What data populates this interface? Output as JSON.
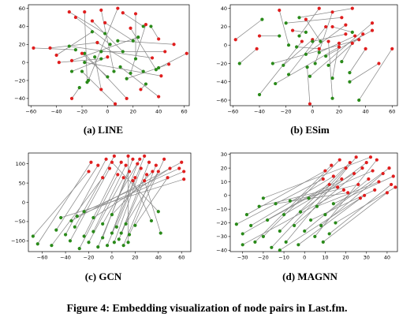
{
  "figure_caption": "Figure 4: Embedding visualization of node pairs in Last.fm.",
  "colors": {
    "red": "#e01e1e",
    "green": "#2a8a1a",
    "line": "#8a8a8a"
  },
  "chart_data": [
    {
      "type": "scatter",
      "caption": "(a) LINE",
      "xlim": [
        -62,
        64
      ],
      "ylim": [
        -48,
        64
      ],
      "xticks": [
        -60,
        -40,
        -20,
        0,
        20,
        40,
        60
      ],
      "yticks": [
        -40,
        -20,
        0,
        20,
        40,
        60
      ],
      "pairs": [
        [
          [
            -58,
            16
          ],
          [
            -25,
            14
          ]
        ],
        [
          [
            -45,
            16
          ],
          [
            -8,
            22
          ]
        ],
        [
          [
            -40,
            8
          ],
          [
            -12,
            34
          ]
        ],
        [
          [
            -38,
            0
          ],
          [
            -5,
            4
          ]
        ],
        [
          [
            -30,
            56
          ],
          [
            -2,
            32
          ]
        ],
        [
          [
            -25,
            50
          ],
          [
            2,
            20
          ]
        ],
        [
          [
            -18,
            56
          ],
          [
            -16,
            -22
          ]
        ],
        [
          [
            -12,
            46
          ],
          [
            12,
            12
          ]
        ],
        [
          [
            -5,
            58
          ],
          [
            5,
            -10
          ]
        ],
        [
          [
            -8,
            22
          ],
          [
            28,
            -10
          ]
        ],
        [
          [
            -2,
            44
          ],
          [
            20,
            24
          ]
        ],
        [
          [
            8,
            60
          ],
          [
            -15,
            -20
          ]
        ],
        [
          [
            12,
            55
          ],
          [
            28,
            40
          ]
        ],
        [
          [
            22,
            54
          ],
          [
            22,
            4
          ]
        ],
        [
          [
            30,
            42
          ],
          [
            18,
            -12
          ]
        ],
        [
          [
            40,
            26
          ],
          [
            34,
            40
          ]
        ],
        [
          [
            45,
            12
          ],
          [
            -5,
            12
          ]
        ],
        [
          [
            52,
            20
          ],
          [
            8,
            24
          ]
        ],
        [
          [
            62,
            10
          ],
          [
            40,
            -6
          ]
        ],
        [
          [
            48,
            -2
          ],
          [
            15,
            -18
          ]
        ],
        [
          [
            42,
            -15
          ],
          [
            -18,
            0
          ]
        ],
        [
          [
            40,
            -38
          ],
          [
            10,
            -5
          ]
        ],
        [
          [
            15,
            -40
          ],
          [
            -18,
            10
          ]
        ],
        [
          [
            6,
            -46
          ],
          [
            -20,
            -10
          ]
        ],
        [
          [
            -5,
            -30
          ],
          [
            -10,
            6
          ]
        ],
        [
          [
            -28,
            -40
          ],
          [
            -22,
            -28
          ]
        ],
        [
          [
            -20,
            10
          ],
          [
            0,
            -16
          ]
        ],
        [
          [
            0,
            6
          ],
          [
            -28,
            -10
          ]
        ],
        [
          [
            18,
            38
          ],
          [
            38,
            -8
          ]
        ],
        [
          [
            -28,
            2
          ],
          [
            24,
            28
          ]
        ],
        [
          [
            35,
            5
          ],
          [
            -30,
            18
          ]
        ],
        [
          [
            26,
            -30
          ],
          [
            30,
            -24
          ]
        ]
      ]
    },
    {
      "type": "scatter",
      "caption": "(b) ESim",
      "xlim": [
        -62,
        64
      ],
      "ylim": [
        -66,
        44
      ],
      "xticks": [
        -60,
        -40,
        -20,
        0,
        20,
        40,
        60
      ],
      "yticks": [
        -60,
        -40,
        -20,
        0,
        20,
        40
      ],
      "pairs": [
        [
          [
            -58,
            6
          ],
          [
            -38,
            28
          ]
        ],
        [
          [
            -42,
            -4
          ],
          [
            -55,
            -20
          ]
        ],
        [
          [
            -40,
            10
          ],
          [
            -25,
            10
          ]
        ],
        [
          [
            -25,
            38
          ],
          [
            -18,
            0
          ]
        ],
        [
          [
            -15,
            16
          ],
          [
            -5,
            14
          ]
        ],
        [
          [
            -5,
            28
          ],
          [
            6,
            4
          ]
        ],
        [
          [
            0,
            6
          ],
          [
            -22,
            -22
          ]
        ],
        [
          [
            5,
            40
          ],
          [
            -10,
            10
          ]
        ],
        [
          [
            10,
            20
          ],
          [
            -18,
            -32
          ]
        ],
        [
          [
            15,
            36
          ],
          [
            2,
            -20
          ]
        ],
        [
          [
            20,
            2
          ],
          [
            15,
            -36
          ]
        ],
        [
          [
            22,
            30
          ],
          [
            -20,
            24
          ]
        ],
        [
          [
            25,
            22
          ],
          [
            -5,
            -10
          ]
        ],
        [
          [
            30,
            40
          ],
          [
            -10,
            30
          ]
        ],
        [
          [
            32,
            10
          ],
          [
            5,
            -8
          ]
        ],
        [
          [
            40,
            -4
          ],
          [
            28,
            -30
          ]
        ],
        [
          [
            45,
            16
          ],
          [
            10,
            -12
          ]
        ],
        [
          [
            50,
            -20
          ],
          [
            28,
            -40
          ]
        ],
        [
          [
            45,
            24
          ],
          [
            -2,
            -34
          ]
        ],
        [
          [
            35,
            6
          ],
          [
            -30,
            -20
          ]
        ],
        [
          [
            25,
            12
          ],
          [
            0,
            4
          ]
        ],
        [
          [
            15,
            20
          ],
          [
            30,
            14
          ]
        ],
        [
          [
            5,
            -4
          ],
          [
            -12,
            -2
          ]
        ],
        [
          [
            -2,
            -64
          ],
          [
            -4,
            -24
          ]
        ],
        [
          [
            12,
            4
          ],
          [
            15,
            -58
          ]
        ],
        [
          [
            -8,
            4
          ],
          [
            -40,
            -54
          ]
        ],
        [
          [
            30,
            2
          ],
          [
            22,
            -18
          ]
        ],
        [
          [
            60,
            -4
          ],
          [
            35,
            -60
          ]
        ],
        [
          [
            20,
            -2
          ],
          [
            -28,
            -42
          ]
        ],
        [
          [
            38,
            12
          ],
          [
            12,
            -22
          ]
        ]
      ]
    },
    {
      "type": "scatter",
      "caption": "(c) GCN",
      "xlim": [
        -72,
        68
      ],
      "ylim": [
        -128,
        128
      ],
      "xticks": [
        -60,
        -40,
        -20,
        0,
        20,
        40,
        60
      ],
      "yticks": [
        -100,
        -50,
        0,
        50,
        100
      ],
      "pairs": [
        [
          [
            -20,
            80
          ],
          [
            -68,
            -88
          ]
        ],
        [
          [
            -18,
            104
          ],
          [
            -64,
            -108
          ]
        ],
        [
          [
            -12,
            96
          ],
          [
            -48,
            -72
          ]
        ],
        [
          [
            -8,
            64
          ],
          [
            -52,
            -112
          ]
        ],
        [
          [
            -5,
            112
          ],
          [
            -40,
            -84
          ]
        ],
        [
          [
            -2,
            88
          ],
          [
            -36,
            -100
          ]
        ],
        [
          [
            2,
            120
          ],
          [
            -32,
            -64
          ]
        ],
        [
          [
            5,
            72
          ],
          [
            -28,
            -120
          ]
        ],
        [
          [
            8,
            104
          ],
          [
            -24,
            -88
          ]
        ],
        [
          [
            10,
            64
          ],
          [
            -20,
            -104
          ]
        ],
        [
          [
            12,
            96
          ],
          [
            -16,
            -76
          ]
        ],
        [
          [
            15,
            80
          ],
          [
            -12,
            -116
          ]
        ],
        [
          [
            18,
            112
          ],
          [
            -8,
            -92
          ]
        ],
        [
          [
            20,
            64
          ],
          [
            -4,
            -112
          ]
        ],
        [
          [
            22,
            100
          ],
          [
            0,
            -80
          ]
        ],
        [
          [
            25,
            88
          ],
          [
            2,
            -104
          ]
        ],
        [
          [
            28,
            120
          ],
          [
            4,
            -64
          ]
        ],
        [
          [
            30,
            72
          ],
          [
            6,
            -96
          ]
        ],
        [
          [
            32,
            104
          ],
          [
            8,
            -80
          ]
        ],
        [
          [
            38,
            96
          ],
          [
            10,
            -112
          ]
        ],
        [
          [
            40,
            80
          ],
          [
            12,
            -56
          ]
        ],
        [
          [
            45,
            112
          ],
          [
            15,
            -84
          ]
        ],
        [
          [
            48,
            64
          ],
          [
            20,
            -60
          ]
        ],
        [
          [
            60,
            104
          ],
          [
            -35,
            -48
          ]
        ],
        [
          [
            62,
            80
          ],
          [
            -30,
            -36
          ]
        ],
        [
          [
            62,
            60
          ],
          [
            -44,
            -40
          ]
        ],
        [
          [
            58,
            88
          ],
          [
            -24,
            -24
          ]
        ],
        [
          [
            50,
            88
          ],
          [
            -16,
            -40
          ]
        ],
        [
          [
            35,
            80
          ],
          [
            0,
            -32
          ]
        ],
        [
          [
            18,
            56
          ],
          [
            34,
            -48
          ]
        ],
        [
          [
            0,
            104
          ],
          [
            40,
            -24
          ]
        ],
        [
          [
            28,
            56
          ],
          [
            42,
            -80
          ]
        ],
        [
          [
            14,
            120
          ],
          [
            14,
            -104
          ]
        ],
        [
          [
            24,
            112
          ],
          [
            -8,
            -56
          ]
        ]
      ]
    },
    {
      "type": "scatter",
      "caption": "(d) MAGNN",
      "xlim": [
        -36,
        45
      ],
      "ylim": [
        -41,
        31
      ],
      "xticks": [
        -30,
        -20,
        -10,
        0,
        10,
        20,
        30,
        40
      ],
      "yticks": [
        -40,
        -30,
        -20,
        -10,
        0,
        10,
        20,
        30
      ],
      "pairs": [
        [
          [
            9,
            12
          ],
          [
            -33,
            -21
          ]
        ],
        [
          [
            12,
            8
          ],
          [
            -30,
            -28
          ]
        ],
        [
          [
            10,
            18
          ],
          [
            -28,
            -14
          ]
        ],
        [
          [
            14,
            14
          ],
          [
            -26,
            -22
          ]
        ],
        [
          [
            13,
            22
          ],
          [
            -24,
            -34
          ]
        ],
        [
          [
            16,
            6
          ],
          [
            -22,
            -8
          ]
        ],
        [
          [
            17,
            26
          ],
          [
            -20,
            -30
          ]
        ],
        [
          [
            18,
            12
          ],
          [
            -18,
            -18
          ]
        ],
        [
          [
            20,
            20
          ],
          [
            -16,
            -38
          ]
        ],
        [
          [
            21,
            2
          ],
          [
            -14,
            -6
          ]
        ],
        [
          [
            22,
            24
          ],
          [
            -12,
            -26
          ]
        ],
        [
          [
            24,
            16
          ],
          [
            -10,
            -14
          ]
        ],
        [
          [
            25,
            28
          ],
          [
            -9,
            -34
          ]
        ],
        [
          [
            26,
            8
          ],
          [
            -7,
            -4
          ]
        ],
        [
          [
            28,
            20
          ],
          [
            -5,
            -22
          ]
        ],
        [
          [
            29,
            0
          ],
          [
            -3,
            -36
          ]
        ],
        [
          [
            30,
            24
          ],
          [
            -2,
            -12
          ]
        ],
        [
          [
            31,
            12
          ],
          [
            0,
            -26
          ]
        ],
        [
          [
            33,
            18
          ],
          [
            2,
            -2
          ]
        ],
        [
          [
            34,
            4
          ],
          [
            3,
            -18
          ]
        ],
        [
          [
            35,
            26
          ],
          [
            5,
            -30
          ]
        ],
        [
          [
            36,
            10
          ],
          [
            6,
            -8
          ]
        ],
        [
          [
            38,
            16
          ],
          [
            8,
            -22
          ]
        ],
        [
          [
            40,
            2
          ],
          [
            9,
            -34
          ]
        ],
        [
          [
            41,
            20
          ],
          [
            10,
            -14
          ]
        ],
        [
          [
            42,
            8
          ],
          [
            12,
            -28
          ]
        ],
        [
          [
            43,
            14
          ],
          [
            14,
            -6
          ]
        ],
        [
          [
            44,
            6
          ],
          [
            15,
            -20
          ]
        ],
        [
          [
            27,
            -2
          ],
          [
            -12,
            -40
          ]
        ],
        [
          [
            19,
            4
          ],
          [
            -30,
            -36
          ]
        ],
        [
          [
            32,
            28
          ],
          [
            -20,
            -2
          ]
        ]
      ]
    }
  ]
}
